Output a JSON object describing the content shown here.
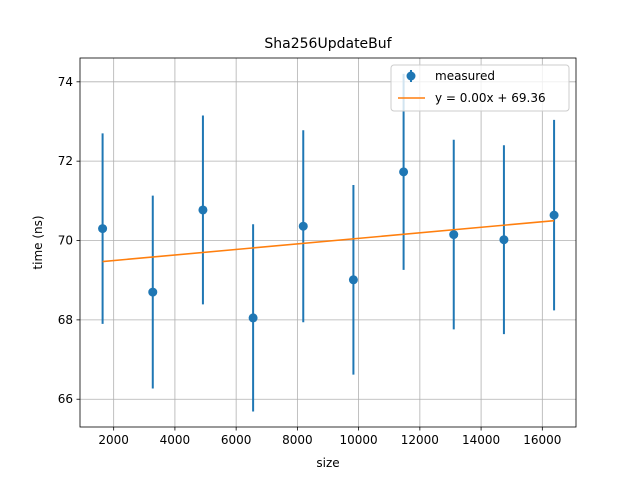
{
  "chart_data": {
    "type": "scatter",
    "title": "Sha256UpdateBuf",
    "xlabel": "size",
    "ylabel": "time (ns)",
    "xlim": [
      900,
      17100
    ],
    "ylim": [
      65.3,
      74.6
    ],
    "xticks": [
      2000,
      4000,
      6000,
      8000,
      10000,
      12000,
      14000,
      16000
    ],
    "yticks": [
      66,
      68,
      70,
      72,
      74
    ],
    "grid": true,
    "legend_position": "top-right",
    "series": [
      {
        "name": "measured",
        "kind": "errorbar",
        "color": "#1f77b4",
        "x": [
          1638,
          3277,
          4915,
          6554,
          8192,
          9830,
          11469,
          13107,
          14746,
          16384
        ],
        "y": [
          70.3,
          68.7,
          70.77,
          68.05,
          70.36,
          69.01,
          71.73,
          70.15,
          70.02,
          70.64
        ],
        "yerr": [
          2.4,
          2.43,
          2.38,
          2.36,
          2.42,
          2.39,
          2.47,
          2.39,
          2.38,
          2.4
        ]
      },
      {
        "name": "y = 0.00x + 69.36",
        "kind": "line",
        "color": "#ff7f0e",
        "x": [
          1638,
          16384
        ],
        "y": [
          69.47,
          70.5
        ]
      }
    ]
  }
}
